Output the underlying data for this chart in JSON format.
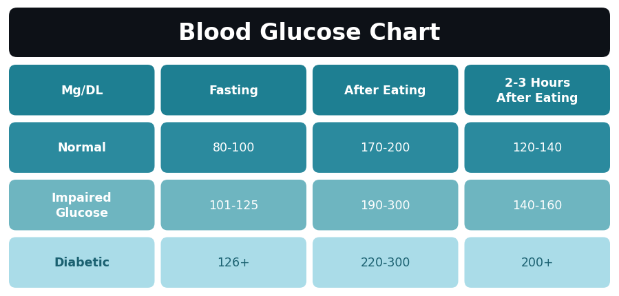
{
  "title": "Blood Glucose Chart",
  "title_bg": "#0d1117",
  "title_color": "#ffffff",
  "background_color": "#ffffff",
  "columns": [
    "Mg/DL",
    "Fasting",
    "After Eating",
    "2-3 Hours\nAfter Eating"
  ],
  "rows": [
    {
      "label": "Normal",
      "values": [
        "80-100",
        "170-200",
        "120-140"
      ],
      "label_color": "#2b8a9e",
      "value_color": "#2b8a9e"
    },
    {
      "label": "Impaired\nGlucose",
      "values": [
        "101-125",
        "190-300",
        "140-160"
      ],
      "label_color": "#6eb5c0",
      "value_color": "#6eb5c0"
    },
    {
      "label": "Diabetic",
      "values": [
        "126+",
        "220-300",
        "200+"
      ],
      "label_color": "#aadce8",
      "value_color": "#aadce8"
    }
  ],
  "header_color": "#1e7f92",
  "text_color": "#ffffff",
  "diabetic_text_color": "#1a6070"
}
